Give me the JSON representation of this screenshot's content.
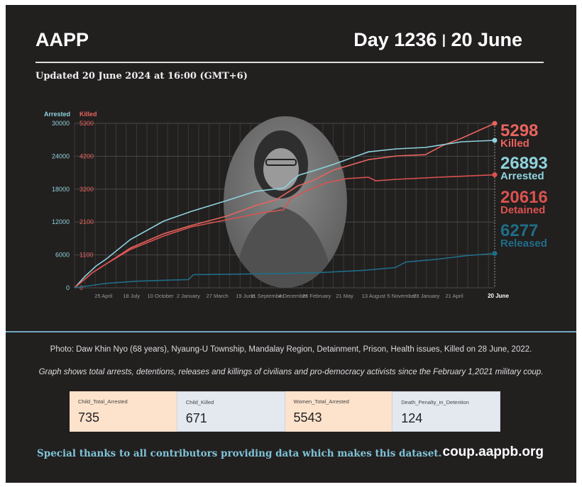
{
  "header": {
    "brand": "AAPP",
    "day": "Day 1236",
    "separator": "|",
    "date": "20 June",
    "updated": "Updated 20 June 2024 at 16:00 (GMT+6)"
  },
  "colors": {
    "arrested": "#8ed3dc",
    "killed": "#e8645e",
    "detained": "#d9534f",
    "released": "#1f6e88",
    "background": "#221f1f"
  },
  "chart_data": {
    "type": "line",
    "x_unit": "months since 1 February 2021",
    "xlim": [
      0,
      40.6
    ],
    "left_axis": {
      "label": "Arrested",
      "ticks": [
        0,
        6000,
        12000,
        18000,
        24000,
        30000
      ],
      "ylim": [
        0,
        30000
      ]
    },
    "right_axis": {
      "label": "Killed",
      "ticks": [
        "0",
        "1100",
        "2100",
        "3200",
        "4200",
        "5300"
      ],
      "ylim": [
        0,
        5300
      ]
    },
    "x_ticks": [
      {
        "m": 2.8,
        "label": "25 April"
      },
      {
        "m": 5.5,
        "label": "18 July"
      },
      {
        "m": 8.3,
        "label": "10 October"
      },
      {
        "m": 11.0,
        "label": "2 January"
      },
      {
        "m": 13.8,
        "label": "27 March"
      },
      {
        "m": 16.5,
        "label": "19 June"
      },
      {
        "m": 18.6,
        "label": "11 September"
      },
      {
        "m": 21.1,
        "label": "4 December"
      },
      {
        "m": 23.4,
        "label": "26 February"
      },
      {
        "m": 26.1,
        "label": "21 May"
      },
      {
        "m": 28.9,
        "label": "13 August"
      },
      {
        "m": 31.6,
        "label": "5 November"
      },
      {
        "m": 34.0,
        "label": "28 January"
      },
      {
        "m": 36.7,
        "label": "21 April"
      },
      {
        "m": 40.6,
        "label": "20 June"
      }
    ],
    "series": [
      {
        "name": "Killed",
        "axis": "right",
        "end_value": "5298",
        "end_label": "Killed",
        "color": "#e8645e",
        "points": [
          [
            0,
            0
          ],
          [
            1.7,
            480
          ],
          [
            3.1,
            780
          ],
          [
            5.4,
            1280
          ],
          [
            8.6,
            1740
          ],
          [
            11.3,
            2010
          ],
          [
            14.7,
            2310
          ],
          [
            17.5,
            2650
          ],
          [
            19.5,
            2840
          ],
          [
            21.6,
            3290
          ],
          [
            23.0,
            3450
          ],
          [
            25.0,
            3790
          ],
          [
            28.4,
            4130
          ],
          [
            31.1,
            4250
          ],
          [
            33.9,
            4290
          ],
          [
            35.6,
            4590
          ],
          [
            37.4,
            4820
          ],
          [
            39.4,
            5120
          ],
          [
            40.6,
            5298
          ]
        ]
      },
      {
        "name": "Arrested",
        "axis": "left",
        "end_value": "26893",
        "end_label": "Arrested",
        "color": "#8ed3dc",
        "points": [
          [
            0,
            0
          ],
          [
            1.0,
            2070
          ],
          [
            2.1,
            4000
          ],
          [
            3.1,
            5300
          ],
          [
            5.4,
            8800
          ],
          [
            8.6,
            12150
          ],
          [
            11.3,
            13950
          ],
          [
            14.7,
            15900
          ],
          [
            17.5,
            17600
          ],
          [
            20.3,
            18230
          ],
          [
            21.0,
            19530
          ],
          [
            21.7,
            20560
          ],
          [
            23.3,
            21470
          ],
          [
            25.0,
            22500
          ],
          [
            28.4,
            24800
          ],
          [
            31.1,
            25350
          ],
          [
            33.9,
            25600
          ],
          [
            37.4,
            26640
          ],
          [
            40.6,
            26893
          ]
        ]
      },
      {
        "name": "Detained",
        "axis": "left",
        "end_value": "20616",
        "end_label": "Detained",
        "color": "#d9534f",
        "points": [
          [
            0,
            0
          ],
          [
            1.7,
            2720
          ],
          [
            3.1,
            4400
          ],
          [
            5.4,
            6980
          ],
          [
            8.6,
            9440
          ],
          [
            11.3,
            11120
          ],
          [
            14.7,
            12410
          ],
          [
            18.2,
            13710
          ],
          [
            20.2,
            14220
          ],
          [
            20.9,
            16290
          ],
          [
            22.3,
            17590
          ],
          [
            24.3,
            19140
          ],
          [
            26.3,
            19910
          ],
          [
            28.4,
            20170
          ],
          [
            29.1,
            19530
          ],
          [
            31.1,
            19780
          ],
          [
            35.2,
            20170
          ],
          [
            40.6,
            20616
          ]
        ]
      },
      {
        "name": "Released",
        "axis": "left",
        "end_value": "6277",
        "end_label": "Released",
        "color": "#1f6e88",
        "points": [
          [
            0,
            0
          ],
          [
            3,
            800
          ],
          [
            6,
            1200
          ],
          [
            9,
            1400
          ],
          [
            11,
            1500
          ],
          [
            11.5,
            2400
          ],
          [
            16,
            2500
          ],
          [
            20,
            2600
          ],
          [
            24,
            2800
          ],
          [
            28,
            3200
          ],
          [
            31,
            3700
          ],
          [
            32,
            4700
          ],
          [
            35,
            5200
          ],
          [
            38,
            5900
          ],
          [
            40.6,
            6277
          ]
        ]
      }
    ]
  },
  "captions": {
    "photo": "Photo: Daw Khin Nyo (68 years), Nyaung-U Township, Mandalay Region, Detainment, Prison, Health issues, Killed on 28 June, 2022.",
    "graph": "Graph shows total arrests, detentions, releases and killings of civilians and pro-democracy activists since the February 1,2021 military coup."
  },
  "cards": [
    {
      "label": "Child_Total_Arrested",
      "value": "735"
    },
    {
      "label": "Child_Killed",
      "value": "671"
    },
    {
      "label": "Women_Total_Arrested",
      "value": "5543"
    },
    {
      "label": "Death_Penalty_in_Detention",
      "value": "124"
    }
  ],
  "footer": {
    "thanks": "Special thanks to all contributors providing data which makes this dataset.",
    "site": "coup.aappb.org"
  }
}
